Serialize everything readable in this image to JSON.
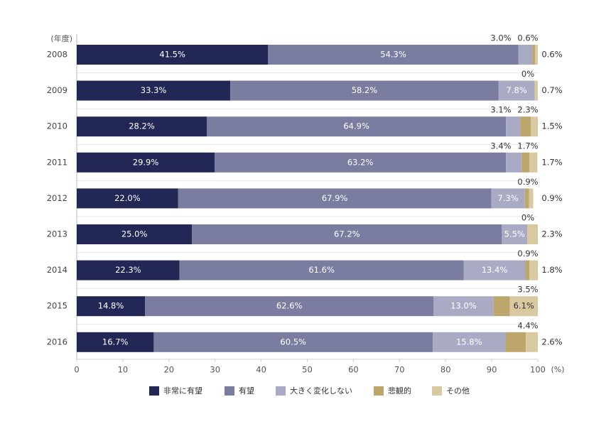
{
  "chart_data": {
    "type": "bar",
    "orientation": "horizontal",
    "stacked": true,
    "y_unit_label": "(年度)",
    "x_unit_label": "(%)",
    "categories": [
      "2008",
      "2009",
      "2010",
      "2011",
      "2012",
      "2013",
      "2014",
      "2015",
      "2016"
    ],
    "xlim": [
      0,
      100
    ],
    "x_ticks": [
      0,
      10,
      20,
      30,
      40,
      50,
      60,
      70,
      80,
      90,
      100
    ],
    "legend_position": "bottom",
    "series": [
      {
        "name": "非常に有望",
        "color": "#232755",
        "label_color": "#ffffff",
        "values": [
          41.5,
          33.3,
          28.2,
          29.9,
          22.0,
          25.0,
          22.3,
          14.8,
          16.7
        ]
      },
      {
        "name": "有望",
        "color": "#7a7ca0",
        "label_color": "#ffffff",
        "values": [
          54.3,
          58.2,
          64.9,
          63.2,
          67.9,
          67.2,
          61.6,
          62.6,
          60.5
        ]
      },
      {
        "name": "大きく変化しない",
        "color": "#a9abc4",
        "label_color": "#ffffff",
        "values": [
          3.0,
          7.8,
          3.1,
          3.4,
          7.3,
          5.5,
          13.4,
          13.0,
          15.8
        ]
      },
      {
        "name": "悲観的",
        "color": "#bda66b",
        "label_color": "#333333",
        "values": [
          0.6,
          0.0,
          2.3,
          1.7,
          0.9,
          0.0,
          0.9,
          3.5,
          4.4
        ]
      },
      {
        "name": "その他",
        "color": "#d9c9a0",
        "label_color": "#333333",
        "values": [
          0.6,
          0.7,
          1.5,
          1.7,
          0.9,
          2.3,
          1.8,
          6.1,
          2.6
        ]
      }
    ],
    "value_labels": [
      {
        "values": [
          "41.5%",
          "54.3%"
        ],
        "above": [
          "3.0%",
          "0.6%"
        ],
        "right": "0.6%"
      },
      {
        "values": [
          "33.3%",
          "58.2%",
          "7.8%"
        ],
        "above": [
          "0%"
        ],
        "right": "0.7%"
      },
      {
        "values": [
          "28.2%",
          "64.9%"
        ],
        "above": [
          "3.1%",
          "2.3%"
        ],
        "right": "1.5%"
      },
      {
        "values": [
          "29.9%",
          "63.2%"
        ],
        "above": [
          "3.4%",
          "1.7%"
        ],
        "right": "1.7%"
      },
      {
        "values": [
          "22.0%",
          "67.9%",
          "7.3%"
        ],
        "above": [
          "0.9%"
        ],
        "right": "0.9%"
      },
      {
        "values": [
          "25.0%",
          "67.2%",
          "5.5%"
        ],
        "above": [
          "0%"
        ],
        "right": "2.3%"
      },
      {
        "values": [
          "22.3%",
          "61.6%",
          "13.4%"
        ],
        "above": [
          "0.9%"
        ],
        "right": "1.8%"
      },
      {
        "values": [
          "14.8%",
          "62.6%",
          "13.0%",
          "",
          "6.1%"
        ],
        "above": [
          "3.5%"
        ],
        "right": ""
      },
      {
        "values": [
          "16.7%",
          "60.5%",
          "15.8%"
        ],
        "above": [
          "4.4%"
        ],
        "right": "2.6%"
      }
    ]
  }
}
